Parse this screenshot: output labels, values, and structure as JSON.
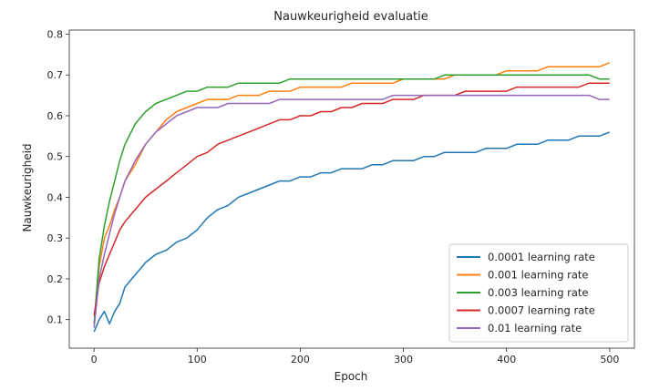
{
  "chart_data": {
    "type": "line",
    "title": "Nauwkeurigheid evaluatie",
    "xlabel": "Epoch",
    "ylabel": "Nauwkeurigheid",
    "xlim": [
      -24,
      524
    ],
    "ylim": [
      0.03,
      0.81
    ],
    "xticks": [
      0,
      100,
      200,
      300,
      400,
      500
    ],
    "yticks": [
      0.1,
      0.2,
      0.3,
      0.4,
      0.5,
      0.6,
      0.7,
      0.8
    ],
    "grid": false,
    "legend_position": "lower-right",
    "x": [
      0,
      5,
      10,
      15,
      20,
      25,
      30,
      40,
      50,
      60,
      70,
      80,
      90,
      100,
      110,
      120,
      130,
      140,
      150,
      160,
      170,
      180,
      190,
      200,
      210,
      220,
      230,
      240,
      250,
      260,
      270,
      280,
      290,
      300,
      310,
      320,
      330,
      340,
      350,
      360,
      370,
      380,
      390,
      400,
      410,
      420,
      430,
      440,
      450,
      460,
      470,
      480,
      490,
      500
    ],
    "series": [
      {
        "name": "0.0001 learning rate",
        "color": "#1f77b4",
        "values": [
          0.07,
          0.1,
          0.12,
          0.09,
          0.12,
          0.14,
          0.18,
          0.21,
          0.24,
          0.26,
          0.27,
          0.29,
          0.3,
          0.32,
          0.35,
          0.37,
          0.38,
          0.4,
          0.41,
          0.42,
          0.43,
          0.44,
          0.44,
          0.45,
          0.45,
          0.46,
          0.46,
          0.47,
          0.47,
          0.47,
          0.48,
          0.48,
          0.49,
          0.49,
          0.49,
          0.5,
          0.5,
          0.51,
          0.51,
          0.51,
          0.51,
          0.52,
          0.52,
          0.52,
          0.53,
          0.53,
          0.53,
          0.54,
          0.54,
          0.54,
          0.55,
          0.55,
          0.55,
          0.56
        ]
      },
      {
        "name": "0.001 learning rate",
        "color": "#ff7f0e",
        "values": [
          0.09,
          0.23,
          0.3,
          0.33,
          0.37,
          0.4,
          0.44,
          0.48,
          0.53,
          0.56,
          0.59,
          0.61,
          0.62,
          0.63,
          0.64,
          0.64,
          0.64,
          0.65,
          0.65,
          0.65,
          0.66,
          0.66,
          0.66,
          0.67,
          0.67,
          0.67,
          0.67,
          0.67,
          0.68,
          0.68,
          0.68,
          0.68,
          0.68,
          0.69,
          0.69,
          0.69,
          0.69,
          0.69,
          0.7,
          0.7,
          0.7,
          0.7,
          0.7,
          0.71,
          0.71,
          0.71,
          0.71,
          0.72,
          0.72,
          0.72,
          0.72,
          0.72,
          0.72,
          0.73
        ]
      },
      {
        "name": "0.003 learning rate",
        "color": "#2ca02c",
        "values": [
          0.09,
          0.25,
          0.33,
          0.39,
          0.44,
          0.49,
          0.53,
          0.58,
          0.61,
          0.63,
          0.64,
          0.65,
          0.66,
          0.66,
          0.67,
          0.67,
          0.67,
          0.68,
          0.68,
          0.68,
          0.68,
          0.68,
          0.69,
          0.69,
          0.69,
          0.69,
          0.69,
          0.69,
          0.69,
          0.69,
          0.69,
          0.69,
          0.69,
          0.69,
          0.69,
          0.69,
          0.69,
          0.7,
          0.7,
          0.7,
          0.7,
          0.7,
          0.7,
          0.7,
          0.7,
          0.7,
          0.7,
          0.7,
          0.7,
          0.7,
          0.7,
          0.7,
          0.69,
          0.69
        ]
      },
      {
        "name": "0.0007 learning rate",
        "color": "#d62728",
        "values": [
          0.11,
          0.19,
          0.23,
          0.26,
          0.29,
          0.32,
          0.34,
          0.37,
          0.4,
          0.42,
          0.44,
          0.46,
          0.48,
          0.5,
          0.51,
          0.53,
          0.54,
          0.55,
          0.56,
          0.57,
          0.58,
          0.59,
          0.59,
          0.6,
          0.6,
          0.61,
          0.61,
          0.62,
          0.62,
          0.63,
          0.63,
          0.63,
          0.64,
          0.64,
          0.64,
          0.65,
          0.65,
          0.65,
          0.65,
          0.66,
          0.66,
          0.66,
          0.66,
          0.66,
          0.67,
          0.67,
          0.67,
          0.67,
          0.67,
          0.67,
          0.67,
          0.68,
          0.68,
          0.68
        ]
      },
      {
        "name": "0.01 learning rate",
        "color": "#9467bd",
        "values": [
          0.08,
          0.2,
          0.26,
          0.31,
          0.36,
          0.4,
          0.44,
          0.49,
          0.53,
          0.56,
          0.58,
          0.6,
          0.61,
          0.62,
          0.62,
          0.62,
          0.63,
          0.63,
          0.63,
          0.63,
          0.63,
          0.64,
          0.64,
          0.64,
          0.64,
          0.64,
          0.64,
          0.64,
          0.64,
          0.64,
          0.64,
          0.64,
          0.65,
          0.65,
          0.65,
          0.65,
          0.65,
          0.65,
          0.65,
          0.65,
          0.65,
          0.65,
          0.65,
          0.65,
          0.65,
          0.65,
          0.65,
          0.65,
          0.65,
          0.65,
          0.65,
          0.65,
          0.64,
          0.64
        ]
      }
    ]
  }
}
